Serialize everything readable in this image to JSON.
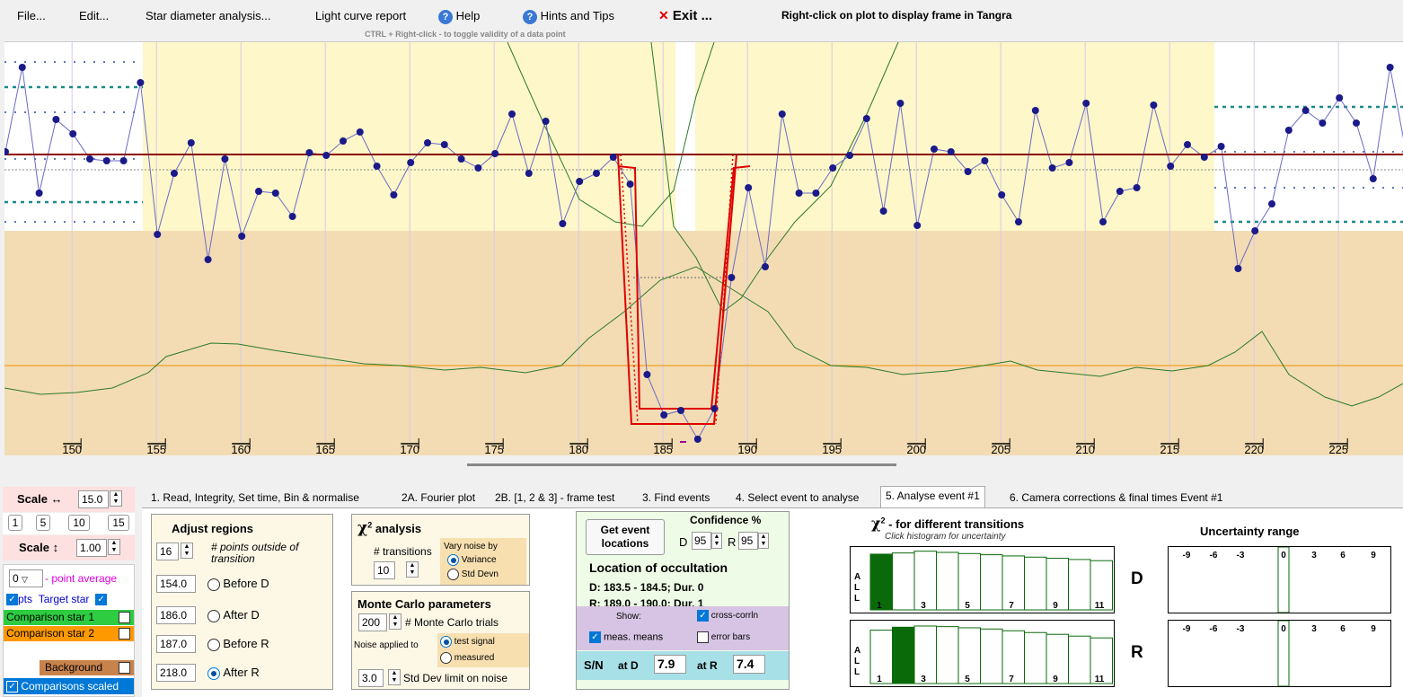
{
  "menu": {
    "file": "File...",
    "edit": "Edit...",
    "star_diameter": "Star diameter analysis...",
    "light_curve_report": "Light curve report",
    "help": "Help",
    "hints": "Hints and Tips",
    "exit": "Exit ...",
    "right_click_hint": "Right-click on plot to display frame in Tangra",
    "ctrl_hint": "CTRL + Right-click  -  to toggle validity of a data point"
  },
  "plot": {
    "x_ticks": [
      "150",
      "155",
      "160",
      "165",
      "170",
      "175",
      "180",
      "185",
      "190",
      "195",
      "200",
      "205",
      "210",
      "215",
      "220",
      "225"
    ]
  },
  "left": {
    "scale_h_label": "Scale ↔",
    "scale_h_value": "15.0",
    "scale_buttons": [
      "1",
      "5",
      "10",
      "15"
    ],
    "scale_v_label": "Scale ↕",
    "scale_v_value": "1.00",
    "point_avg_value": "0",
    "point_avg_label": "- point average",
    "pts_label": "pts",
    "target_label": "Target star",
    "comp1_label": "Comparison star 1",
    "comp2_label": "Comparison star 2",
    "background_label": "Background",
    "comparisons_scaled_label": "Comparisons scaled",
    "colors": {
      "comp1": "#2ecc40",
      "comp2": "#ff9900",
      "background": "#c8824b",
      "scaled": "#0078d7"
    }
  },
  "tabs": [
    "1.  Read, Integrity, Set time, Bin & normalise",
    "2A. Fourier plot",
    "2B. [1, 2 & 3] - frame test",
    "3. Find events",
    "4. Select event to analyse",
    "5. Analyse event #1",
    "6. Camera corrections & final times Event #1"
  ],
  "adjust": {
    "title": "Adjust regions",
    "points_value": "16",
    "points_label": "# points outside of transition",
    "rows": [
      {
        "value": "154.0",
        "label": "Before D"
      },
      {
        "value": "186.0",
        "label": "After D"
      },
      {
        "value": "187.0",
        "label": "Before R"
      },
      {
        "value": "218.0",
        "label": "After R"
      }
    ]
  },
  "chi": {
    "title": "analysis",
    "transitions_label": "# transitions",
    "transitions_value": "10",
    "vary_label": "Vary noise by",
    "variance": "Variance",
    "stddevn": "Std Devn"
  },
  "monte": {
    "title": "Monte Carlo parameters",
    "trials_value": "200",
    "trials_label": "# Monte Carlo trials",
    "noise_applied": "Noise applied to",
    "test_signal": "test signal",
    "measured": "measured",
    "limit_value": "3.0",
    "limit_label": "Std Dev limit on noise"
  },
  "event": {
    "get_btn": "Get event locations",
    "conf_title": "Confidence %",
    "d_label": "D",
    "d_value": "95",
    "r_label": "R",
    "r_value": "95",
    "loc_title": "Location of occultation",
    "d_line": "D: 183.5 - 184.5; Dur. 0",
    "r_line": "R: 189.0 - 190.0; Dur. 1",
    "show_label": "Show:",
    "cross_corr": "cross-corrln",
    "meas_means": "meas. means",
    "error_bars": "error bars",
    "sn_label": "S/N",
    "at_d_label": "at D",
    "at_d_value": "7.9",
    "at_r_label": "at R",
    "at_r_value": "7.4"
  },
  "chi_hist": {
    "title": "- for different transitions",
    "subtitle": "Click histogram for uncertainty",
    "d_label": "D",
    "r_label": "R",
    "tick_labels": [
      "1",
      "3",
      "5",
      "7",
      "9",
      "11"
    ],
    "all_letters": [
      "A",
      "L",
      "L"
    ],
    "d_bars": [
      0.94,
      0.96,
      0.99,
      0.97,
      0.95,
      0.93,
      0.91,
      0.89,
      0.87,
      0.85,
      0.83
    ],
    "d_selected": 1,
    "r_bars": [
      0.9,
      0.95,
      0.97,
      0.96,
      0.94,
      0.92,
      0.89,
      0.86,
      0.83,
      0.8,
      0.77
    ],
    "r_selected": 2
  },
  "uncert": {
    "title": "Uncertainty range",
    "ticks": [
      "-9",
      "-6",
      "-3",
      "0",
      "3",
      "6",
      "9"
    ]
  }
}
